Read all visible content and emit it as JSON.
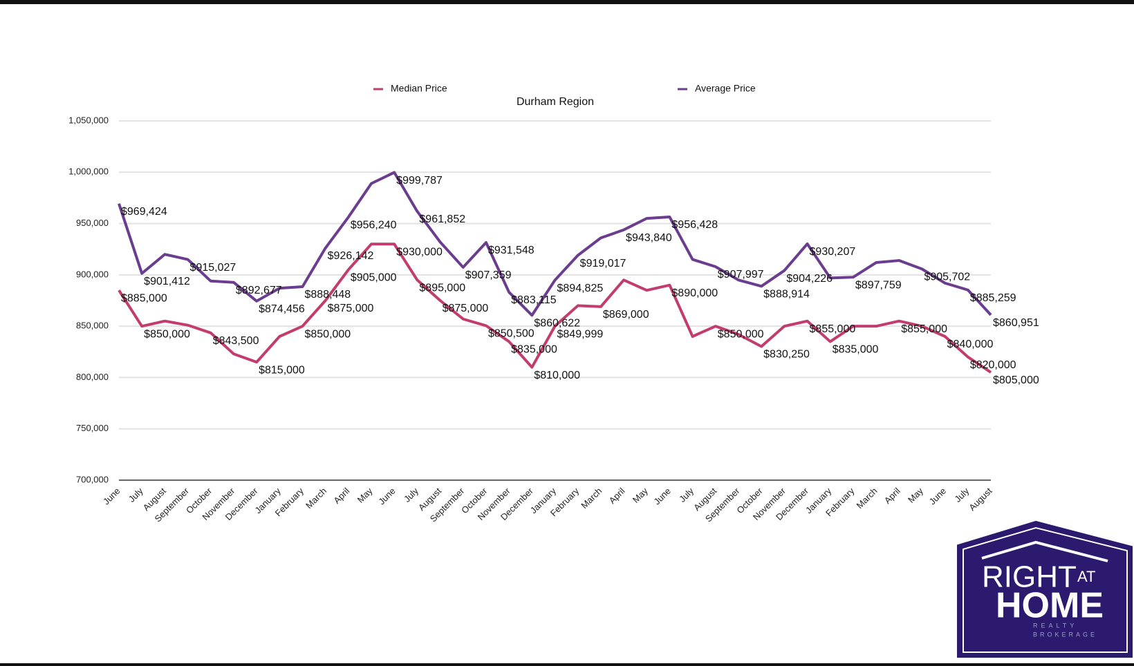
{
  "chart_data": {
    "type": "line",
    "title": "Durham Region",
    "categories": [
      "June",
      "July",
      "August",
      "September",
      "October",
      "November",
      "December",
      "January",
      "February",
      "March",
      "April",
      "May",
      "June",
      "July",
      "August",
      "September",
      "October",
      "November",
      "December",
      "January",
      "February",
      "March",
      "April",
      "May",
      "June",
      "July",
      "August",
      "September",
      "October",
      "November",
      "December",
      "January",
      "February",
      "March",
      "April",
      "May",
      "June",
      "July",
      "August"
    ],
    "ylim": [
      700000,
      1050000
    ],
    "yticks": [
      {
        "value": 700000,
        "label": "700,000"
      },
      {
        "value": 750000,
        "label": "750,000"
      },
      {
        "value": 800000,
        "label": "800,000"
      },
      {
        "value": 850000,
        "label": "850,000"
      },
      {
        "value": 900000,
        "label": "900,000"
      },
      {
        "value": 950000,
        "label": "950,000"
      },
      {
        "value": 1000000,
        "label": "1,000,000"
      },
      {
        "value": 1050000,
        "label": "1,050,000"
      }
    ],
    "grid": true,
    "legend": "top",
    "series": [
      {
        "name": "Median Price",
        "color": "#c23d6e",
        "values": [
          885000,
          850000,
          855000,
          851000,
          843500,
          823000,
          815000,
          840000,
          850000,
          875000,
          905000,
          930000,
          930000,
          895000,
          875000,
          857000,
          850500,
          835000,
          810000,
          849999,
          870000,
          869000,
          895000,
          885000,
          890000,
          840000,
          850000,
          842000,
          830250,
          850000,
          855000,
          835000,
          850000,
          850000,
          855000,
          850000,
          840000,
          820000,
          805000
        ],
        "value_labels": [
          "$885,000",
          "$850,000",
          null,
          null,
          "$843,500",
          null,
          "$815,000",
          null,
          "$850,000",
          "$875,000",
          "$905,000",
          null,
          "$930,000",
          "$895,000",
          "$875,000",
          null,
          "$850,500",
          "$835,000",
          "$810,000",
          "$849,999",
          null,
          "$869,000",
          null,
          null,
          "$890,000",
          null,
          "$850,000",
          null,
          "$830,250",
          null,
          "$855,000",
          "$835,000",
          null,
          null,
          "$855,000",
          null,
          "$840,000",
          "$820,000",
          "$805,000"
        ]
      },
      {
        "name": "Average Price",
        "color": "#6b3d8e",
        "values": [
          969424,
          901412,
          920000,
          915027,
          894000,
          892677,
          874456,
          887000,
          888448,
          926142,
          956240,
          989000,
          999787,
          961852,
          932000,
          907359,
          931548,
          883115,
          860622,
          894825,
          919017,
          936000,
          943840,
          955000,
          956428,
          915000,
          907997,
          895000,
          888914,
          904226,
          930207,
          897000,
          897759,
          912000,
          914000,
          905702,
          892000,
          885259,
          860951
        ],
        "value_labels": [
          "$969,424",
          "$901,412",
          null,
          "$915,027",
          null,
          "$892,677",
          "$874,456",
          null,
          "$888,448",
          "$926,142",
          "$956,240",
          null,
          "$999,787",
          "$961,852",
          null,
          "$907,359",
          "$931,548",
          "$883,115",
          "$860,622",
          "$894,825",
          "$919,017",
          null,
          "$943,840",
          null,
          "$956,428",
          null,
          "$907,997",
          null,
          "$888,914",
          "$904,226",
          "$930,207",
          null,
          "$897,759",
          null,
          null,
          "$905,702",
          null,
          "$885,259",
          "$860,951"
        ]
      }
    ]
  },
  "logo": {
    "words": [
      "RIGHT",
      "AT",
      "HOME",
      "REALTY",
      "BROKERAGE"
    ]
  }
}
